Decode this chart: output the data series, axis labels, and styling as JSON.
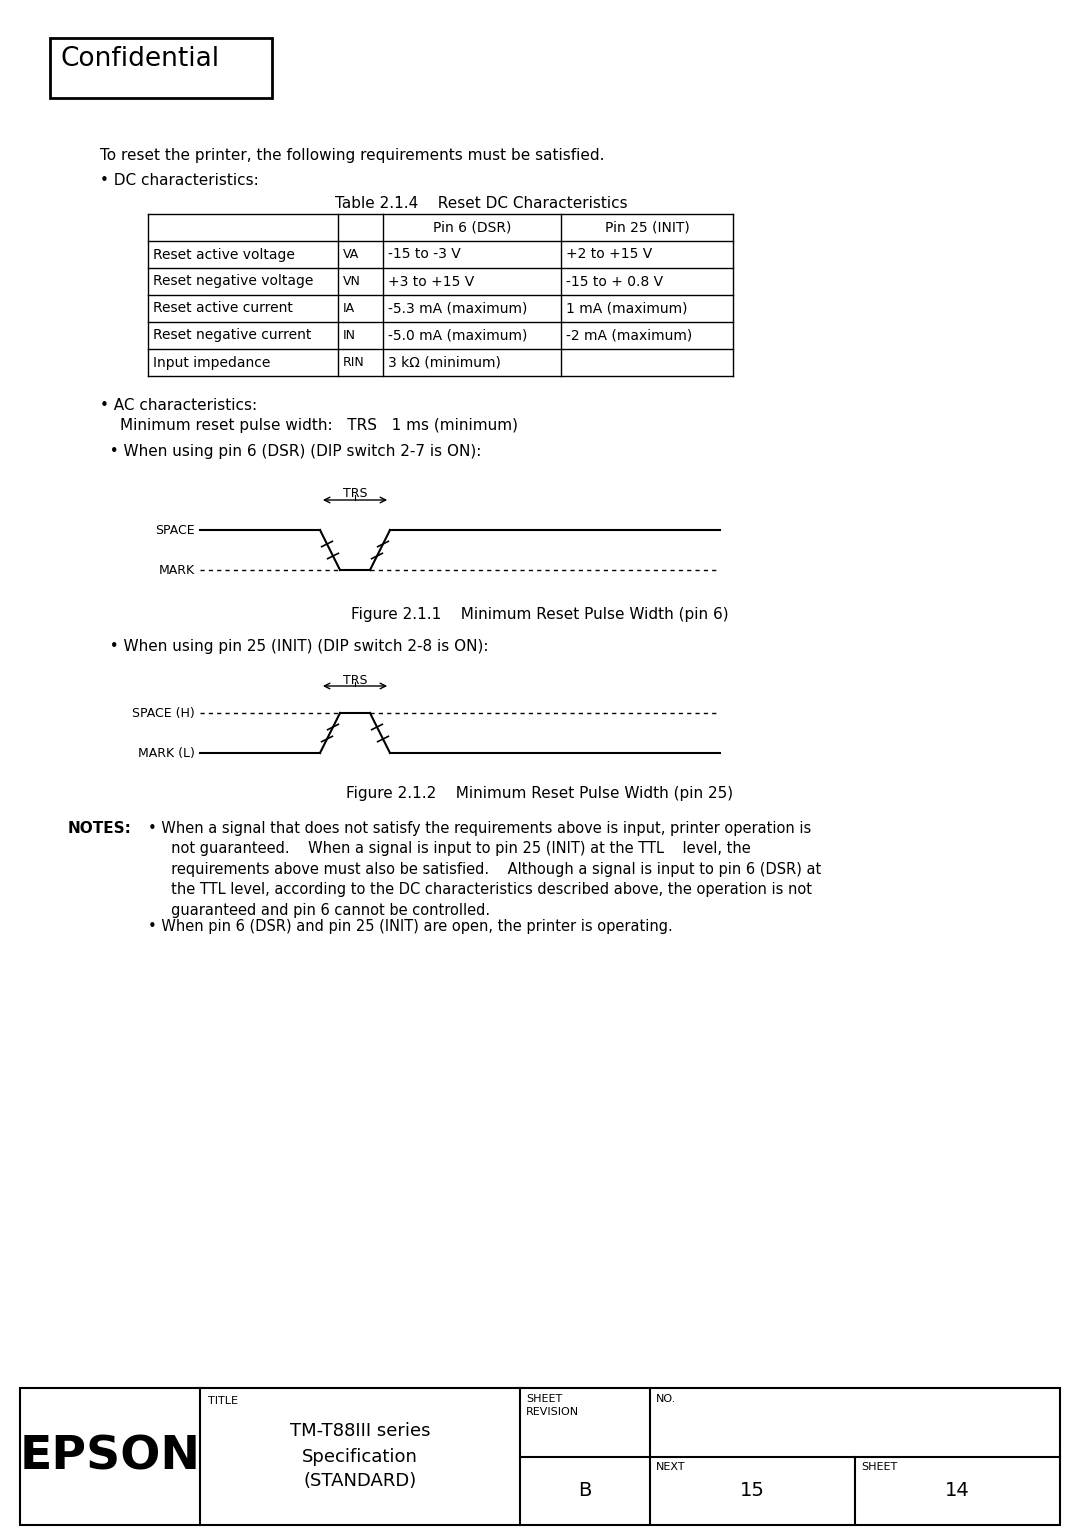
{
  "bg_color": "#ffffff",
  "confidential_text": "Confidential",
  "intro_text": "To reset the printer, the following requirements must be satisfied.",
  "dc_bullet": "• DC characteristics:",
  "table_title": "Table 2.1.4    Reset DC Characteristics",
  "table_headers": [
    "",
    "",
    "Pin 6 (DSR)",
    "Pin 25 (INIT)"
  ],
  "table_rows": [
    [
      "Reset active voltage",
      "VA",
      "-15 to -3 V",
      "+2 to +15 V"
    ],
    [
      "Reset negative voltage",
      "VN",
      "+3 to +15 V",
      "-15 to + 0.8 V"
    ],
    [
      "Reset active current",
      "IA",
      "-5.3 mA (maximum)",
      "1 mA (maximum)"
    ],
    [
      "Reset negative current",
      "IN",
      "-5.0 mA (maximum)",
      "-2 mA (maximum)"
    ],
    [
      "Input impedance",
      "RIN",
      "3 kΩ (minimum)",
      ""
    ]
  ],
  "ac_bullet": "• AC characteristics:",
  "ac_min_text": "Minimum reset pulse width:   TRS   1 ms (minimum)",
  "pin6_bullet": "  • When using pin 6 (DSR) (DIP switch 2-7 is ON):",
  "fig1_label": "Figure 2.1.1    Minimum Reset Pulse Width (pin 6)",
  "pin25_bullet": "  • When using pin 25 (INIT) (DIP switch 2-8 is ON):",
  "fig2_label": "Figure 2.1.2    Minimum Reset Pulse Width (pin 25)",
  "notes_label": "NOTES:",
  "epson_text": "EPSON",
  "title_text": "TM-T88III series\nSpecification\n(STANDARD)",
  "b_text": "B",
  "next_num": "15",
  "sheet_num2": "14"
}
